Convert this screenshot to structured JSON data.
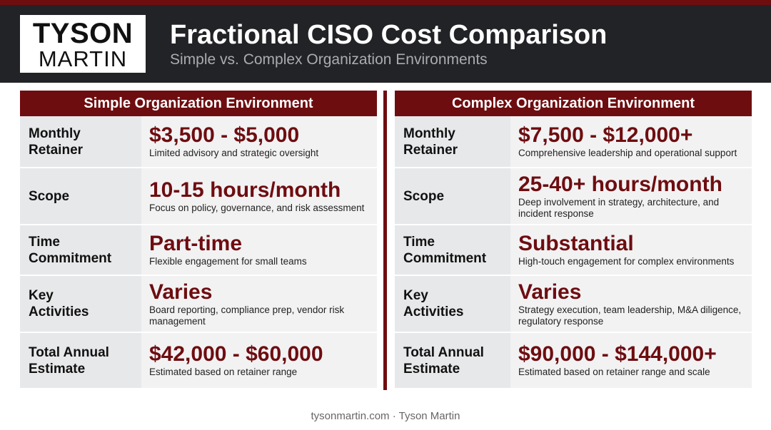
{
  "header": {
    "logo_line1": "TYSON",
    "logo_line2": "MARTIN",
    "title": "Fractional CISO Cost Comparison",
    "subtitle": "Simple vs. Complex Organization Environments"
  },
  "colors": {
    "accent": "#6e0d10",
    "header_bg": "#222326",
    "label_bg": "#e7e8ea",
    "value_bg": "#f2f2f3"
  },
  "simple": {
    "heading": "Simple Organization Environment",
    "rows": [
      {
        "label": "Monthly Retainer",
        "value": "$3,500 - $5,000",
        "desc": "Limited advisory and strategic oversight"
      },
      {
        "label": "Scope",
        "value": "10-15 hours/month",
        "desc": "Focus on policy, governance, and risk assessment"
      },
      {
        "label": "Time Commitment",
        "value": "Part-time",
        "desc": "Flexible engagement for small teams"
      },
      {
        "label": "Key Activities",
        "value": "Varies",
        "desc": "Board reporting, compliance prep, vendor risk management"
      },
      {
        "label": "Total Annual Estimate",
        "value": "$42,000 - $60,000",
        "desc": "Estimated based on retainer range"
      }
    ]
  },
  "complex": {
    "heading": "Complex Organization Environment",
    "rows": [
      {
        "label": "Monthly Retainer",
        "value": "$7,500 - $12,000+",
        "desc": "Comprehensive leadership and operational support"
      },
      {
        "label": "Scope",
        "value": "25-40+ hours/month",
        "desc": "Deep involvement in strategy, architecture, and incident response"
      },
      {
        "label": "Time Commitment",
        "value": "Substantial",
        "desc": "High-touch engagement for complex environments"
      },
      {
        "label": "Key Activities",
        "value": "Varies",
        "desc": "Strategy execution, team leadership, M&A diligence, regulatory response"
      },
      {
        "label": "Total Annual Estimate",
        "value": "$90,000 - $144,000+",
        "desc": "Estimated based on retainer range and scale"
      }
    ]
  },
  "footer": "tysonmartin.com · Tyson Martin"
}
